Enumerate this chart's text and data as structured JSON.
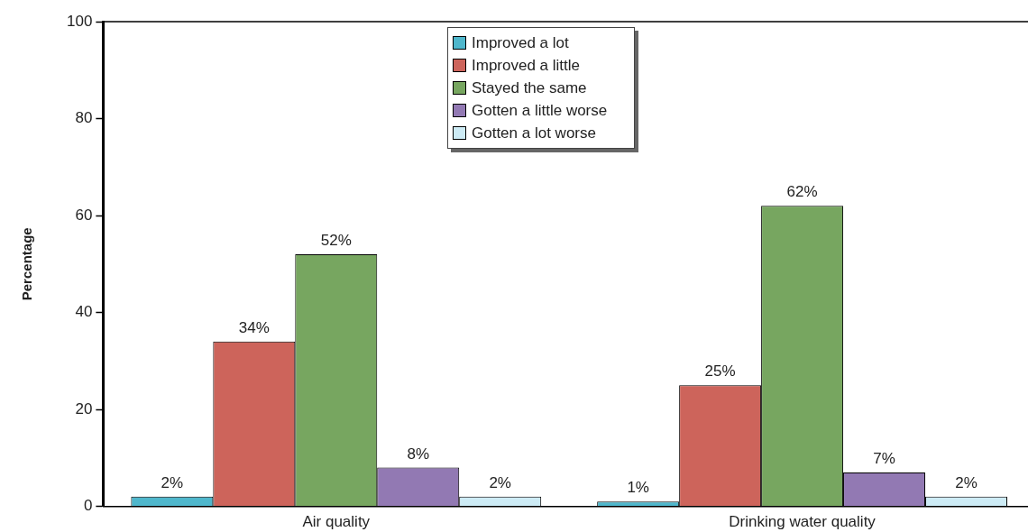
{
  "chart_data": {
    "type": "bar",
    "ylabel": "Percentage",
    "categories": [
      "Air quality",
      "Drinking water quality"
    ],
    "series": [
      {
        "name": "Improved a lot",
        "color": "#4fb7cc",
        "values": [
          2,
          1
        ],
        "value_labels": [
          "2%",
          "1%"
        ]
      },
      {
        "name": "Improved a little",
        "color": "#cd645b",
        "values": [
          34,
          25
        ],
        "value_labels": [
          "34%",
          "25%"
        ]
      },
      {
        "name": "Stayed the same",
        "color": "#77a660",
        "values": [
          52,
          62
        ],
        "value_labels": [
          "52%",
          "62%"
        ]
      },
      {
        "name": "Gotten a little worse",
        "color": "#9279b3",
        "values": [
          8,
          7
        ],
        "value_labels": [
          "8%",
          "7%"
        ]
      },
      {
        "name": "Gotten a lot worse",
        "color": "#cdebf5",
        "values": [
          2,
          2
        ],
        "value_labels": [
          "2%",
          "2%"
        ]
      }
    ],
    "ylim": [
      0,
      100
    ],
    "yticks": [
      0,
      20,
      40,
      60,
      80,
      100
    ],
    "grid": false,
    "legend": "top"
  }
}
